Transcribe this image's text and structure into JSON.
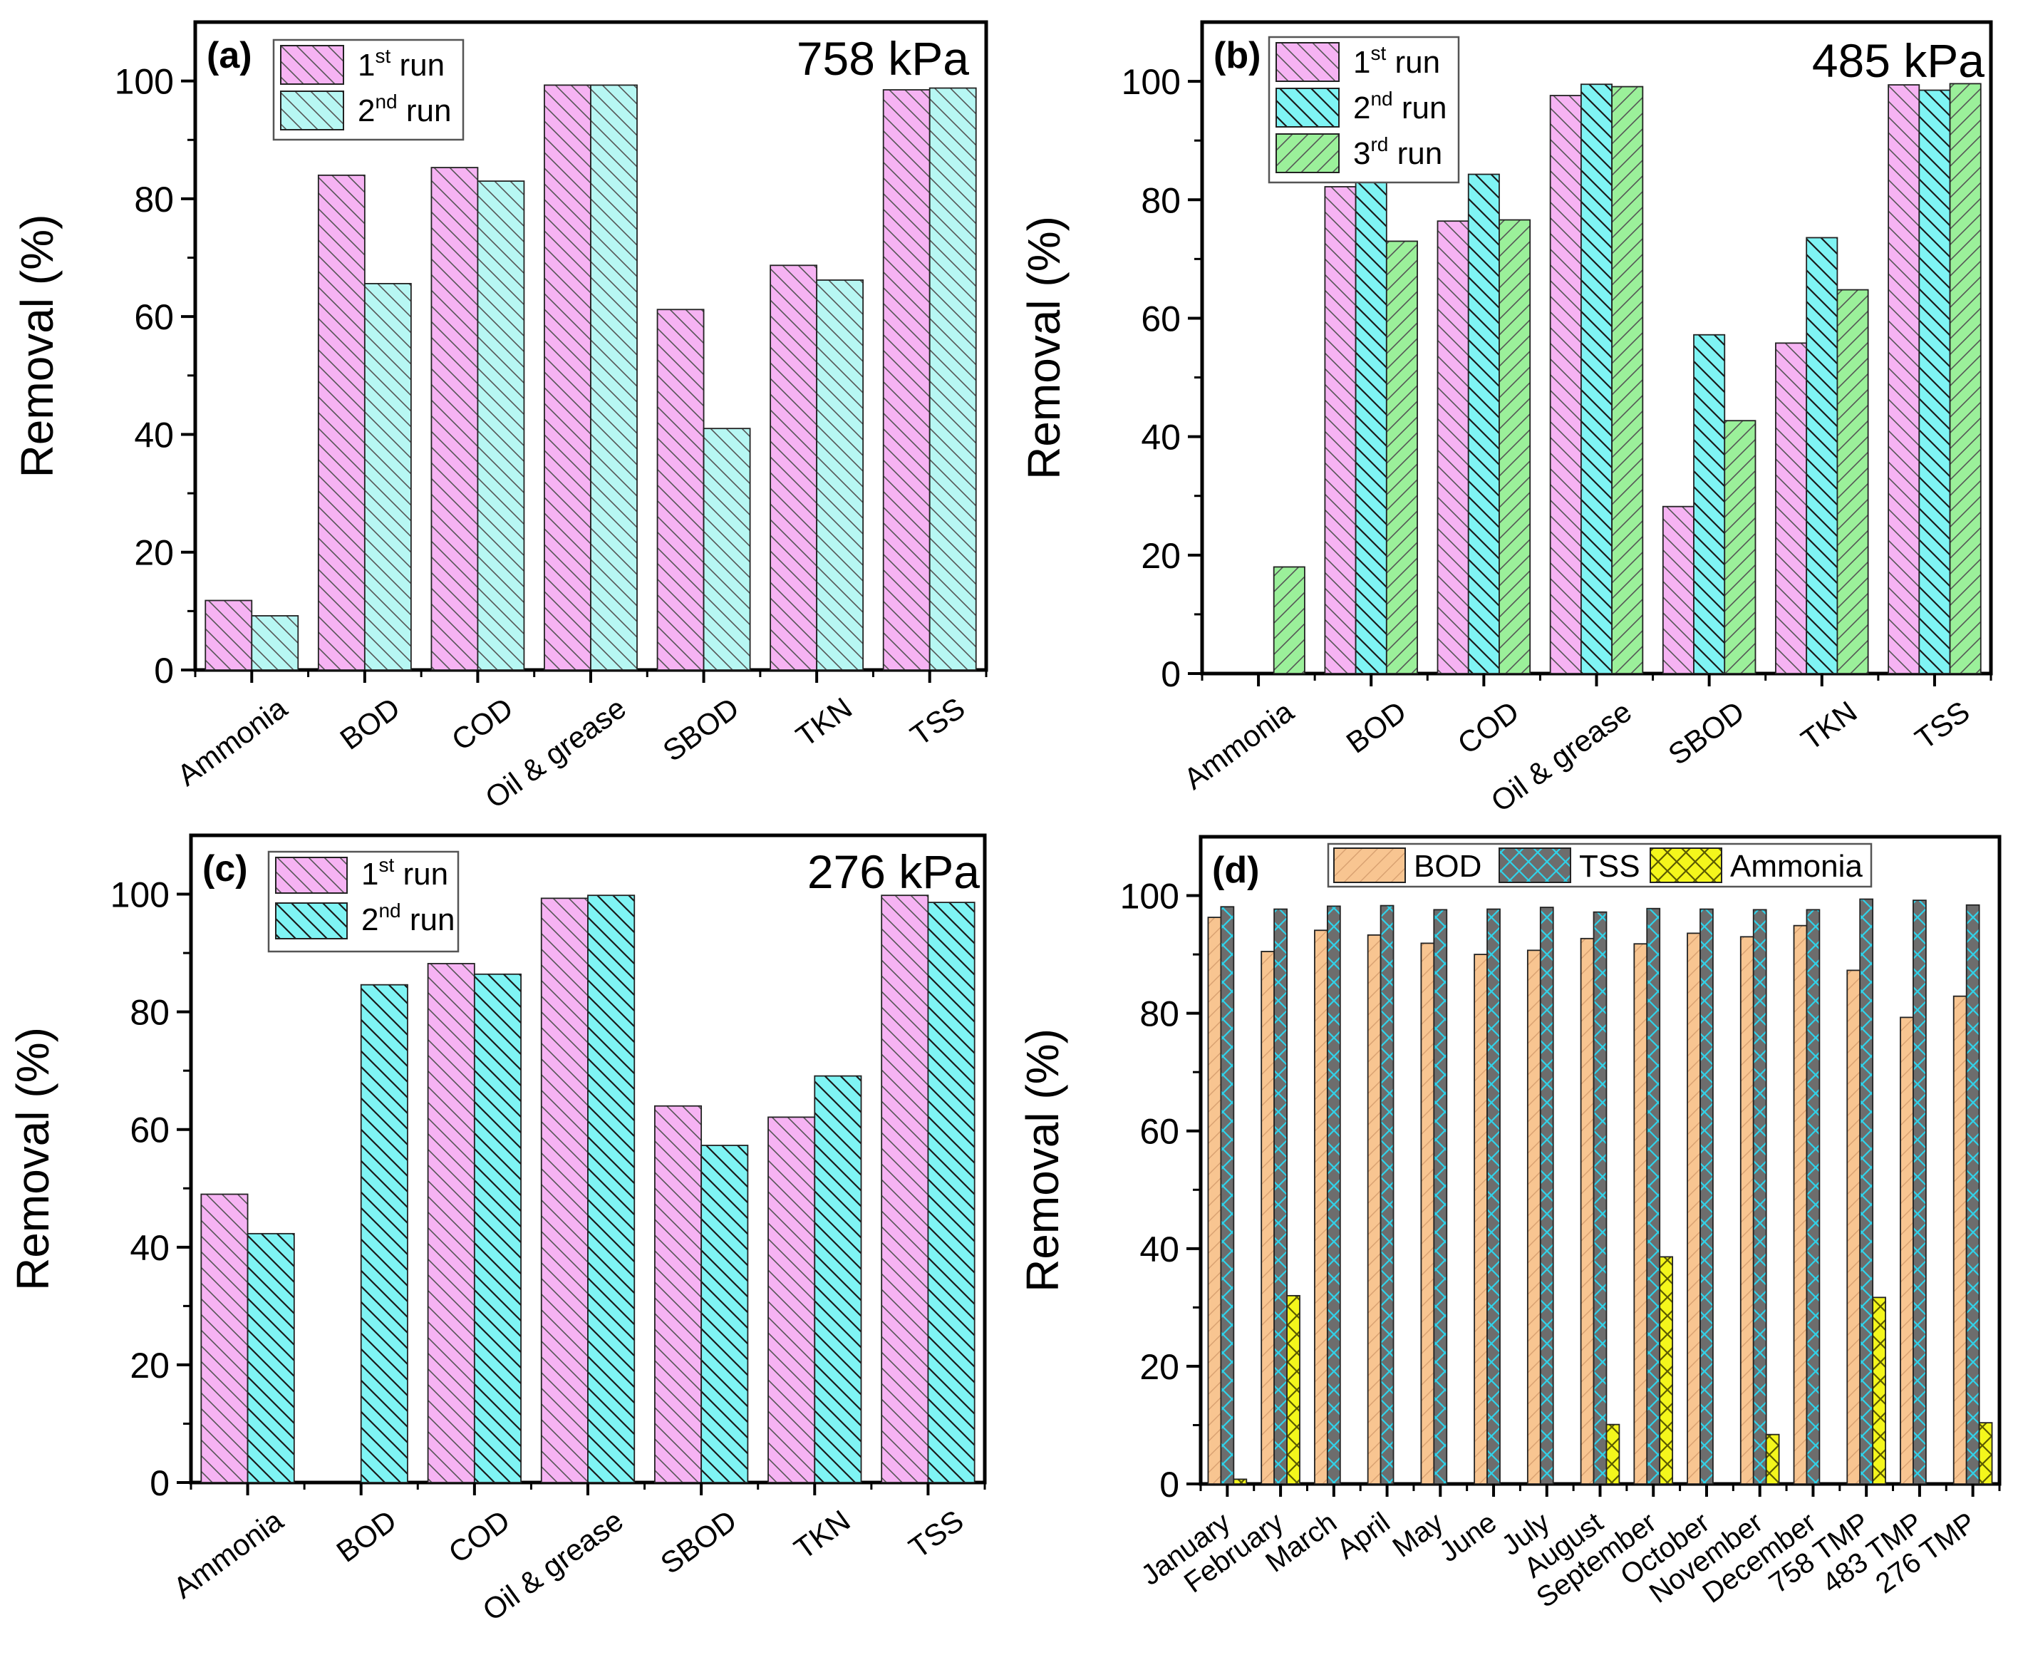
{
  "colors": {
    "pink": "#f6b3f3",
    "light_cyan": "#b7f7f3",
    "cyan": "#7ff4f4",
    "green": "#9bf09a",
    "peach": "#f8c591",
    "gray": "#6d6d6d",
    "yellow": "#f4f61c",
    "axis": "#000000",
    "hatch_light": "#555555",
    "hatch_dark": "#1a1a1a",
    "hatch_cross": "#2fd3ea"
  },
  "chart_data": [
    {
      "panel": "(a)",
      "type": "bar",
      "pressure": "758 kPa",
      "ylabel": "Removal (%)",
      "ylim": [
        0,
        110
      ],
      "yticks": [
        "0",
        "20",
        "40",
        "60",
        "80",
        "100"
      ],
      "categories": [
        "Ammonia",
        "BOD",
        "COD",
        "Oil & grease",
        "SBOD",
        "TKN",
        "TSS"
      ],
      "legend_position": "top-left",
      "series": [
        {
          "name": "1",
          "sup": "st",
          "suffix": " run",
          "values": [
            11.8,
            84.0,
            85.3,
            99.3,
            61.2,
            68.7,
            98.5
          ]
        },
        {
          "name": "2",
          "sup": "nd",
          "suffix": " run",
          "values": [
            9.2,
            65.6,
            83.0,
            99.3,
            41.0,
            66.2,
            98.8
          ]
        }
      ]
    },
    {
      "panel": "(b)",
      "type": "bar",
      "pressure": "485 kPa",
      "ylabel": "Removal (%)",
      "ylim": [
        0,
        110
      ],
      "yticks": [
        "0",
        "20",
        "40",
        "60",
        "80",
        "100"
      ],
      "categories": [
        "Ammonia",
        "BOD",
        "COD",
        "Oil & grease",
        "SBOD",
        "TKN",
        "TSS"
      ],
      "legend_position": "top-left",
      "series": [
        {
          "name": "1",
          "sup": "st",
          "suffix": " run",
          "values": [
            0,
            82.2,
            76.4,
            97.6,
            28.2,
            55.8,
            99.4
          ]
        },
        {
          "name": "2",
          "sup": "nd",
          "suffix": " run",
          "values": [
            0,
            83.2,
            84.3,
            99.5,
            57.2,
            73.6,
            98.5
          ]
        },
        {
          "name": "3",
          "sup": "rd",
          "suffix": " run",
          "values": [
            18.0,
            73.0,
            76.6,
            99.1,
            42.7,
            64.8,
            99.6
          ]
        }
      ]
    },
    {
      "panel": "(c)",
      "type": "bar",
      "pressure": "276 kPa",
      "ylabel": "Removal (%)",
      "ylim": [
        0,
        110
      ],
      "yticks": [
        "0",
        "20",
        "40",
        "60",
        "80",
        "100"
      ],
      "categories": [
        "Ammonia",
        "BOD",
        "COD",
        "Oil & grease",
        "SBOD",
        "TKN",
        "TSS"
      ],
      "legend_position": "top-left",
      "series": [
        {
          "name": "1",
          "sup": "st",
          "suffix": " run",
          "values": [
            49.0,
            0,
            88.2,
            99.3,
            64.0,
            62.1,
            99.8
          ]
        },
        {
          "name": "2",
          "sup": "nd",
          "suffix": " run",
          "values": [
            42.3,
            84.6,
            86.4,
            99.8,
            57.3,
            69.1,
            98.6
          ]
        }
      ]
    },
    {
      "panel": "(d)",
      "type": "bar",
      "pressure": "",
      "ylabel": "Removal (%)",
      "ylim": [
        0,
        110
      ],
      "yticks": [
        "0",
        "20",
        "40",
        "60",
        "80",
        "100"
      ],
      "categories": [
        "January",
        "February",
        "March",
        "April",
        "May",
        "June",
        "July",
        "August",
        "September",
        "October",
        "November",
        "December",
        "758 TMP",
        "483 TMP",
        "276 TMP"
      ],
      "legend_position": "top",
      "series": [
        {
          "name": "BOD",
          "sup": "",
          "suffix": "",
          "values": [
            96.3,
            90.5,
            94.1,
            93.3,
            91.9,
            90.0,
            90.7,
            92.7,
            91.8,
            93.6,
            93.0,
            94.9,
            87.3,
            79.3,
            82.9
          ]
        },
        {
          "name": "TSS",
          "sup": "",
          "suffix": "",
          "values": [
            98.1,
            97.7,
            98.2,
            98.3,
            97.6,
            97.7,
            98.0,
            97.2,
            97.8,
            97.7,
            97.6,
            97.6,
            99.4,
            99.2,
            98.4
          ]
        },
        {
          "name": "Ammonia",
          "sup": "",
          "suffix": "",
          "values": [
            0.8,
            32.0,
            0,
            0,
            0,
            0,
            0,
            10.1,
            38.6,
            0,
            8.4,
            0,
            31.7,
            0,
            10.4
          ]
        }
      ]
    }
  ]
}
